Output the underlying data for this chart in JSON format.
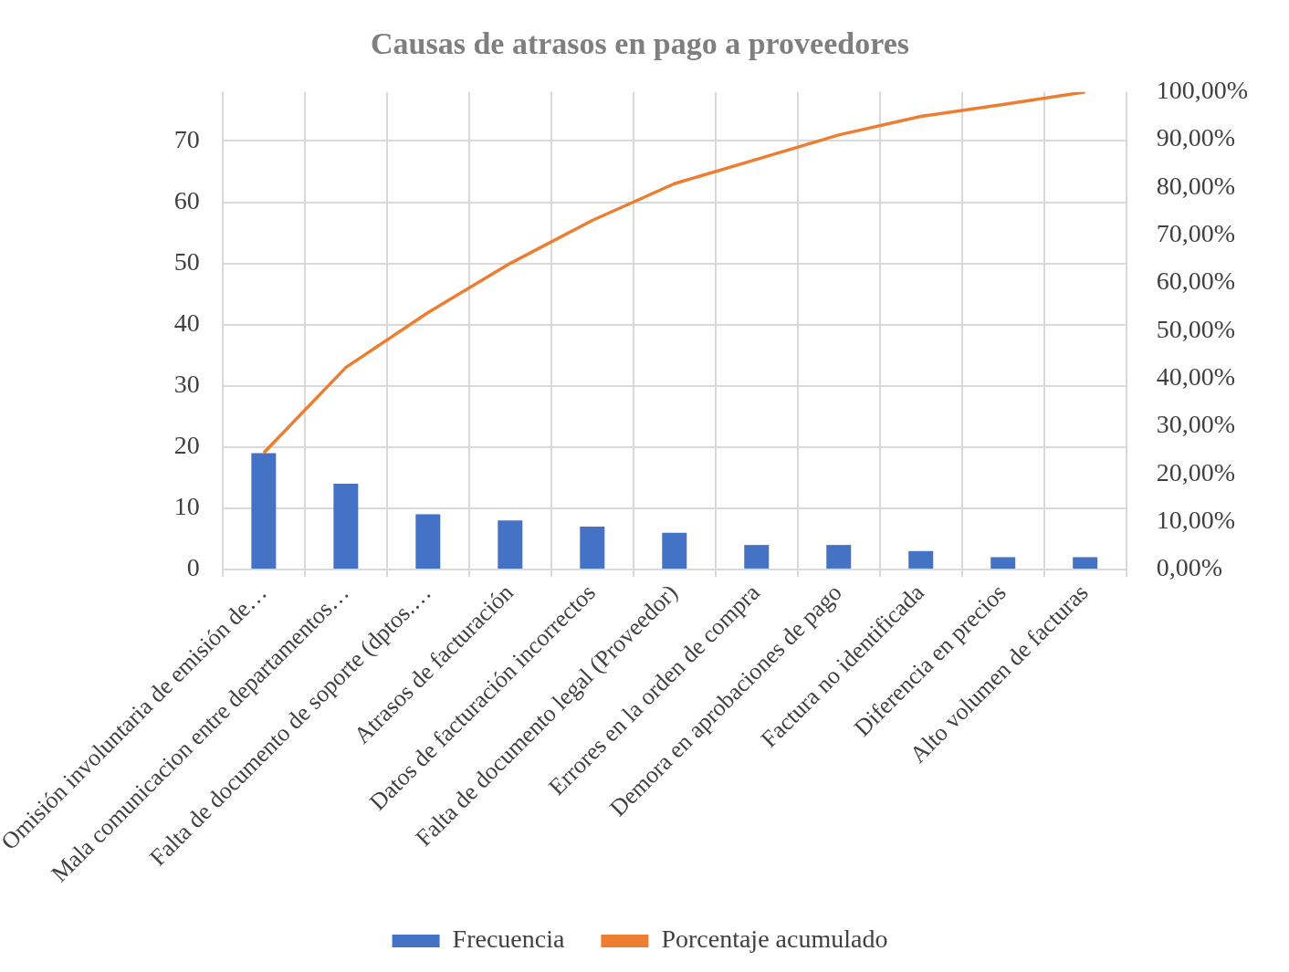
{
  "chart_data": {
    "type": "bar",
    "title": "Causas de atrasos en pago a proveedores",
    "categories": [
      "Omisión involuntaria de emisión de…",
      "Mala comunicacion entre departamentos…",
      "Falta de documento de soporte (dptos.…",
      "Atrasos de facturación",
      "Datos de facturación incorrectos",
      "Falta de documento legal (Proveedor)",
      "Errores en la orden de compra",
      "Demora en aprobaciones de pago",
      "Factura no identificada",
      "Diferencia en precios",
      "Alto volumen de facturas"
    ],
    "series": [
      {
        "name": "Frecuencia",
        "color": "#4472c4",
        "values": [
          19,
          14,
          9,
          8,
          7,
          6,
          4,
          4,
          3,
          2,
          2
        ]
      },
      {
        "name": "Porcentaje acumulado",
        "type": "line",
        "axis": "y2",
        "color": "#ed7d31",
        "values": [
          24.4,
          42.3,
          53.8,
          64.1,
          73.1,
          80.8,
          85.9,
          91,
          94.9,
          97.4,
          100
        ]
      }
    ],
    "ylim": [
      0,
      78
    ],
    "yticks": [
      0,
      10,
      20,
      30,
      40,
      50,
      60,
      70
    ],
    "y2lim": [
      0,
      100
    ],
    "y2ticks": [
      {
        "value": 0,
        "label": "0,00%"
      },
      {
        "value": 10,
        "label": "10,00%"
      },
      {
        "value": 20,
        "label": "20,00%"
      },
      {
        "value": 30,
        "label": "30,00%"
      },
      {
        "value": 40,
        "label": "40,00%"
      },
      {
        "value": 50,
        "label": "50,00%"
      },
      {
        "value": 60,
        "label": "60,00%"
      },
      {
        "value": 70,
        "label": "70,00%"
      },
      {
        "value": 80,
        "label": "80,00%"
      },
      {
        "value": 90,
        "label": "90,00%"
      },
      {
        "value": 100,
        "label": "100,00%"
      }
    ],
    "grid": true,
    "legend": "bottom",
    "marker": "none"
  }
}
